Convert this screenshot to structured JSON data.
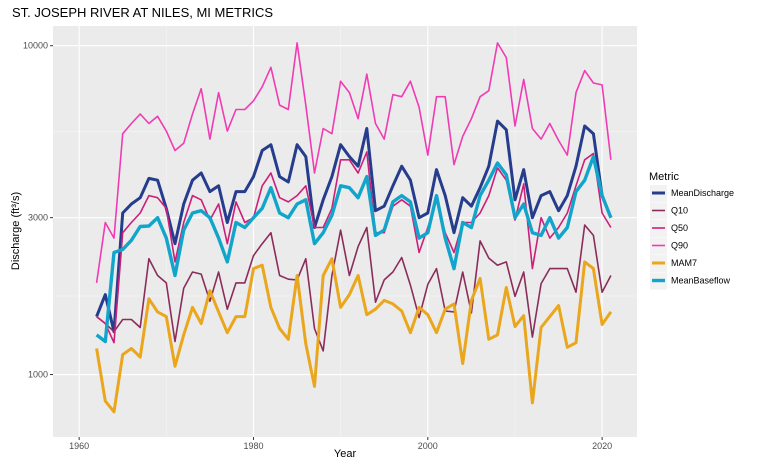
{
  "chart_data": {
    "type": "line",
    "title": "ST. JOSEPH RIVER AT NILES, MI  METRICS",
    "xlabel": "Year",
    "ylabel": "Discharge (ft³/s)",
    "xlim": [
      1957,
      2024
    ],
    "ylim_log10": [
      2.81,
      4.06
    ],
    "y_scale": "log10",
    "x_ticks": [
      1960,
      1980,
      2000,
      2020
    ],
    "x_tick_labels": [
      "1960",
      "1980",
      "2000",
      "2020"
    ],
    "y_ticks": [
      1000,
      3000,
      10000
    ],
    "y_tick_labels": [
      "1000",
      "3000",
      "10000"
    ],
    "grid": true,
    "legend": {
      "title": "Metric",
      "position": "right"
    },
    "x": [
      1962,
      1963,
      1964,
      1965,
      1966,
      1967,
      1968,
      1969,
      1970,
      1971,
      1972,
      1973,
      1974,
      1975,
      1976,
      1977,
      1978,
      1979,
      1980,
      1981,
      1982,
      1983,
      1984,
      1985,
      1986,
      1987,
      1988,
      1989,
      1990,
      1991,
      1992,
      1993,
      1994,
      1995,
      1996,
      1997,
      1998,
      1999,
      2000,
      2001,
      2002,
      2003,
      2004,
      2005,
      2006,
      2007,
      2008,
      2009,
      2010,
      2011,
      2012,
      2013,
      2014,
      2015,
      2016,
      2017,
      2018,
      2019,
      2020,
      2021
    ],
    "series": [
      {
        "name": "MeanDischarge",
        "color": "#253d8c",
        "width": 3,
        "values": [
          1500,
          1750,
          1350,
          3100,
          3300,
          3450,
          3950,
          3900,
          3200,
          2500,
          3300,
          3900,
          4100,
          3600,
          3750,
          2900,
          3600,
          3600,
          4000,
          4800,
          5000,
          4000,
          3850,
          5000,
          4600,
          2800,
          3400,
          4000,
          5000,
          4600,
          4300,
          5600,
          3150,
          3250,
          3750,
          4300,
          3900,
          3000,
          3100,
          4200,
          3500,
          2700,
          3450,
          3250,
          3700,
          4300,
          5900,
          5550,
          3400,
          4200,
          3000,
          3500,
          3600,
          3150,
          3500,
          4300,
          5700,
          5400,
          3500,
          3000
        ]
      },
      {
        "name": "Q10",
        "color": "#8b2d5b",
        "width": 1.6,
        "values": [
          1500,
          1430,
          1350,
          1470,
          1470,
          1390,
          2250,
          2000,
          1900,
          1260,
          1830,
          2050,
          2020,
          1670,
          2050,
          1580,
          1900,
          1900,
          2300,
          2500,
          2700,
          2000,
          1950,
          1940,
          2250,
          1380,
          1180,
          2000,
          2750,
          2000,
          2450,
          2800,
          1660,
          1940,
          2050,
          2270,
          1870,
          1490,
          1880,
          2100,
          1560,
          1550,
          2050,
          1540,
          2550,
          2260,
          2150,
          2200,
          1730,
          2050,
          1300,
          1890,
          2100,
          2100,
          2100,
          1780,
          2850,
          2650,
          1780,
          2000
        ]
      },
      {
        "name": "Q50",
        "color": "#cc1f7a",
        "width": 1.6,
        "values": [
          1500,
          1430,
          1250,
          2700,
          2900,
          3100,
          3500,
          3450,
          3200,
          2200,
          2900,
          3500,
          3400,
          2950,
          3300,
          2500,
          3350,
          2900,
          3000,
          3750,
          4100,
          3450,
          3350,
          3500,
          3750,
          2800,
          2800,
          3200,
          4500,
          4500,
          4100,
          4750,
          2700,
          2700,
          3250,
          3400,
          3250,
          2350,
          2800,
          3400,
          2700,
          2350,
          2900,
          2900,
          3100,
          3500,
          4250,
          3900,
          2950,
          3800,
          2100,
          3000,
          2600,
          2800,
          3100,
          3750,
          4500,
          4700,
          3100,
          2800
        ]
      },
      {
        "name": "Q90",
        "color": "#f03cb4",
        "width": 1.6,
        "values": [
          1900,
          2900,
          2600,
          5400,
          5800,
          6200,
          5800,
          6100,
          5500,
          4800,
          5050,
          6200,
          7400,
          5200,
          7200,
          5500,
          6400,
          6400,
          6800,
          7500,
          8600,
          6600,
          6400,
          10200,
          6600,
          4100,
          5600,
          5400,
          7800,
          7200,
          6000,
          8200,
          5800,
          5200,
          7100,
          7000,
          7800,
          6500,
          4650,
          7000,
          7000,
          4350,
          5300,
          6000,
          7000,
          7300,
          10200,
          9200,
          5700,
          7900,
          5600,
          5200,
          5800,
          5150,
          4650,
          7200,
          8400,
          7700,
          7600,
          4500
        ]
      },
      {
        "name": "MAM7",
        "color": "#eaa61c",
        "width": 3,
        "values": [
          1200,
          830,
          770,
          1150,
          1200,
          1130,
          1700,
          1550,
          1500,
          1060,
          1320,
          1600,
          1430,
          1800,
          1550,
          1340,
          1500,
          1500,
          2100,
          2150,
          1600,
          1380,
          1280,
          2000,
          1240,
          920,
          2000,
          2250,
          1600,
          1750,
          2000,
          1520,
          1580,
          1680,
          1640,
          1560,
          1340,
          1600,
          1520,
          1340,
          1580,
          1640,
          1080,
          1680,
          1960,
          1280,
          1320,
          1840,
          1400,
          1510,
          820,
          1390,
          1500,
          1620,
          1210,
          1250,
          2200,
          2100,
          1420,
          1550
        ]
      },
      {
        "name": "MeanBaseflow",
        "color": "#12a5cc",
        "width": 3.4,
        "values": [
          1320,
          1260,
          2350,
          2400,
          2560,
          2820,
          2830,
          3000,
          2600,
          2000,
          2750,
          3100,
          3150,
          3000,
          2600,
          2200,
          2900,
          2800,
          3000,
          3200,
          3700,
          3100,
          3000,
          3300,
          3400,
          2500,
          2700,
          3050,
          3750,
          3700,
          3450,
          4000,
          2650,
          2750,
          3350,
          3500,
          3350,
          2600,
          2700,
          3500,
          2600,
          2100,
          2900,
          2800,
          3500,
          3900,
          4400,
          4050,
          3000,
          3300,
          2700,
          2650,
          3000,
          2600,
          2800,
          3600,
          3900,
          4600,
          3500,
          3000
        ]
      }
    ]
  }
}
